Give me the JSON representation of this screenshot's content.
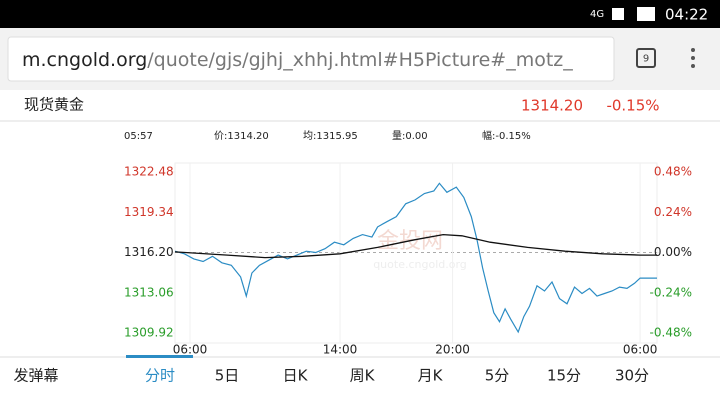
{
  "status_bar": {
    "network": "4G",
    "time": "04:22"
  },
  "address_bar": {
    "host": "m.cngold.org",
    "path": "/quote/gjs/gjhj_xhhj.html#H5Picture#_motz_",
    "tab_count": "9"
  },
  "quote": {
    "name": "现货黄金",
    "price": "1314.20",
    "change": "-0.15%"
  },
  "info": [
    "05:57",
    "价:1314.20",
    "均:1315.95",
    "量:0.00",
    "幅:-0.15%"
  ],
  "watermark": {
    "brand": "金投网",
    "url": "quote.cngold.org"
  },
  "chart_data": {
    "type": "line",
    "xlim": [
      -0.8,
      24.9
    ],
    "xticks": [
      {
        "value": 0,
        "label": "06:00"
      },
      {
        "value": 8,
        "label": "14:00"
      },
      {
        "value": 14,
        "label": "20:00"
      },
      {
        "value": 24,
        "label": "06:00"
      }
    ],
    "ylim": [
      1309.92,
      1322.48
    ],
    "yticks": [
      1309.92,
      1313.06,
      1316.2,
      {
        "value": 1316.2,
        "label": "1316.20"
      },
      1319.34,
      1322.48
    ],
    "y2lim": [
      -0.48,
      0.48
    ],
    "y2ticks": [
      {
        "value": -0.48,
        "label": "-0.48%"
      },
      {
        "value": -0.24,
        "label": "-0.24%"
      },
      {
        "value": 0,
        "label": "0.00%"
      },
      {
        "value": 0.24,
        "label": "0.24%"
      },
      {
        "value": 0.48,
        "label": "0.48%"
      }
    ],
    "series": [
      {
        "color": "#2b8cc4",
        "x": [
          -0.8,
          -0.3,
          0.2,
          0.7,
          1.2,
          1.7,
          2.2,
          2.7,
          3.0,
          3.3,
          3.7,
          4.2,
          4.7,
          5.2,
          5.7,
          6.2,
          6.7,
          7.2,
          7.7,
          8.2,
          8.7,
          9.2,
          9.7,
          10.0,
          10.5,
          11.0,
          11.5,
          12.0,
          12.5,
          13.0,
          13.3,
          13.7,
          14.2,
          14.6,
          15.0,
          15.3,
          15.6,
          15.9,
          16.2,
          16.5,
          16.8,
          17.1,
          17.5,
          17.8,
          18.1,
          18.5,
          18.9,
          19.3,
          19.7,
          20.1,
          20.5,
          20.9,
          21.3,
          21.7,
          22.1,
          22.5,
          22.9,
          23.3,
          23.7,
          24.0,
          24.9
        ],
        "values": [
          1316.3,
          1316.1,
          1315.7,
          1315.5,
          1315.9,
          1315.4,
          1315.2,
          1314.3,
          1312.8,
          1314.6,
          1315.2,
          1315.6,
          1316.0,
          1315.7,
          1316.0,
          1316.3,
          1316.2,
          1316.5,
          1317.0,
          1316.8,
          1317.3,
          1317.6,
          1317.4,
          1318.2,
          1318.6,
          1319.0,
          1320.0,
          1320.3,
          1320.8,
          1321.0,
          1321.6,
          1320.9,
          1321.3,
          1320.5,
          1319.0,
          1317.2,
          1315.0,
          1313.2,
          1311.5,
          1310.8,
          1311.8,
          1311.0,
          1310.0,
          1311.2,
          1312.0,
          1313.6,
          1313.2,
          1313.9,
          1312.6,
          1312.2,
          1313.5,
          1313.0,
          1313.4,
          1312.8,
          1313.0,
          1313.2,
          1313.5,
          1313.4,
          1313.8,
          1314.2,
          1314.2
        ]
      },
      {
        "color": "#111111",
        "x": [
          -0.8,
          2,
          4,
          6,
          8,
          10,
          12,
          13.5,
          14.5,
          16,
          18,
          20,
          22,
          24,
          24.9
        ],
        "values": [
          1316.25,
          1316.0,
          1315.8,
          1315.9,
          1316.1,
          1316.6,
          1317.2,
          1317.6,
          1317.5,
          1317.0,
          1316.6,
          1316.3,
          1316.1,
          1316.0,
          1316.0
        ]
      }
    ]
  },
  "tabs": [
    "发弹幕",
    "分时",
    "5日",
    "日K",
    "周K",
    "月K",
    "5分",
    "15分",
    "30分"
  ]
}
